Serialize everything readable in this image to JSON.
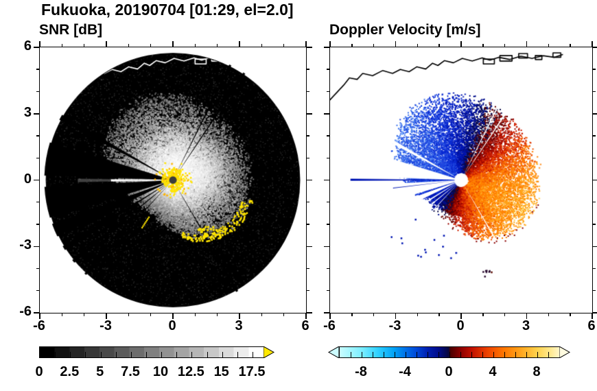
{
  "title": "Fukuoka, 20190704 [01:29, el=2.0]",
  "panels": {
    "snr": {
      "title": "SNR [dB]"
    },
    "vel": {
      "title": "Doppler Velocity [m/s]"
    }
  },
  "axis": {
    "x": [
      "-6",
      "-3",
      "0",
      "3",
      "6"
    ],
    "y": [
      "6",
      "3",
      "0",
      "-3",
      "-6"
    ]
  },
  "colorbars": {
    "snr": {
      "labels": [
        "0",
        "2.5",
        "5",
        "7.5",
        "10",
        "12.5",
        "15",
        "17.5"
      ],
      "segments": 15,
      "range": [
        0,
        18.4
      ],
      "arrow_color": "#ffe800"
    },
    "vel": {
      "labels": [
        "-8",
        "-4",
        "0",
        "4",
        "8"
      ],
      "range": [
        -10,
        10
      ],
      "arrow_left_color": "#ccfbff",
      "arrow_right_color": "#fffbe0",
      "stops": [
        [
          -10,
          "#c8fdff"
        ],
        [
          -8,
          "#7deeff"
        ],
        [
          -6.5,
          "#2fd0ff"
        ],
        [
          -5,
          "#00a0f5"
        ],
        [
          -4,
          "#0070e8"
        ],
        [
          -3,
          "#0048d8"
        ],
        [
          -2,
          "#0020b0"
        ],
        [
          -1,
          "#000d8b"
        ],
        [
          -0.05,
          "#06063c"
        ],
        [
          0.05,
          "#4a0000"
        ],
        [
          1,
          "#8b0000"
        ],
        [
          2,
          "#c01000"
        ],
        [
          3.5,
          "#ee4400"
        ],
        [
          5,
          "#ff7800"
        ],
        [
          6.5,
          "#ffa51e"
        ],
        [
          8,
          "#ffd24d"
        ],
        [
          9.2,
          "#ffe990"
        ],
        [
          10,
          "#fff6c8"
        ]
      ]
    }
  },
  "chart_data": [
    {
      "type": "heatmap",
      "variant": "radar-ppi",
      "title": "SNR [dB]",
      "x_range": [
        -6,
        6
      ],
      "y_range": [
        -6,
        6
      ],
      "x_ticks": [
        -6,
        -3,
        0,
        3,
        6
      ],
      "y_ticks": [
        -6,
        -3,
        0,
        3,
        6
      ],
      "grid": false,
      "colorbar": {
        "label_values": [
          0,
          2.5,
          5,
          7.5,
          10,
          12.5,
          15,
          17.5
        ],
        "range": [
          0,
          18.4
        ],
        "palette": "grayscale black to white, discrete steps",
        "over_arrow": "yellow"
      },
      "features": {
        "radar_location": [
          0,
          0
        ],
        "scan_radius_units": 5.75,
        "background": "black disk (no/low SNR) with faint noise speckle",
        "echo_boundary_params": {
          "base": 3.0,
          "c1": 0.9,
          "p1": 60,
          "c2": 0.45,
          "p2": 270
        },
        "echo": "bright speckled precipitation echo centered on radar, brightest (white, ~15-18 dB) core, ragged gray edges",
        "blocked_sectors_deg": [
          [
            163,
            178
          ],
          [
            183,
            197
          ],
          [
            200,
            206
          ],
          [
            211,
            213
          ],
          [
            218.5,
            220
          ],
          [
            226.5,
            227.5
          ],
          [
            149.5,
            152
          ]
        ],
        "thin_rays_deg": [
          [
            55.8,
            56.8
          ],
          [
            63,
            64
          ],
          [
            299.5,
            300.5
          ]
        ],
        "bright_ray_deg": [
          179.2,
          181.3
        ],
        "ground_clutter": "saturated yellow cluster at radar site with dark center dot",
        "sea_clutter_arc_deg": [
          280,
          348
        ],
        "coastline_points": [
          [
            -6,
            3.55
          ],
          [
            -5.3,
            4.3
          ],
          [
            -5.05,
            4.62
          ],
          [
            -4.7,
            4.55
          ],
          [
            -4.45,
            4.82
          ],
          [
            -4.0,
            4.72
          ],
          [
            -3.55,
            4.95
          ],
          [
            -3.1,
            4.82
          ],
          [
            -2.75,
            5.0
          ],
          [
            -2.35,
            4.9
          ],
          [
            -2.0,
            5.12
          ],
          [
            -1.6,
            5.02
          ],
          [
            -1.3,
            5.28
          ],
          [
            -1.05,
            5.18
          ],
          [
            -0.75,
            5.4
          ],
          [
            -0.35,
            5.3
          ],
          [
            0.05,
            5.5
          ],
          [
            0.5,
            5.38
          ],
          [
            0.95,
            5.52
          ],
          [
            1.3,
            5.42
          ],
          [
            1.7,
            5.55
          ],
          [
            2.2,
            5.45
          ],
          [
            2.7,
            5.6
          ],
          [
            3.2,
            5.5
          ],
          [
            3.7,
            5.62
          ],
          [
            4.2,
            5.55
          ],
          [
            4.6,
            5.68
          ]
        ],
        "port_shapes": [
          [
            1.0,
            5.25,
            0.5,
            0.22
          ],
          [
            1.75,
            5.38,
            0.55,
            0.25
          ],
          [
            2.6,
            5.52,
            0.4,
            0.2
          ],
          [
            3.35,
            5.45,
            0.3,
            0.18
          ],
          [
            4.15,
            5.55,
            0.35,
            0.2
          ]
        ]
      }
    },
    {
      "type": "heatmap",
      "variant": "radar-ppi",
      "title": "Doppler Velocity [m/s]",
      "x_range": [
        -6,
        6
      ],
      "y_range": [
        -6,
        6
      ],
      "x_ticks": [
        -6,
        -3,
        0,
        3,
        6
      ],
      "y_ticks": [
        -6,
        -3,
        0,
        3,
        6
      ],
      "grid": false,
      "colorbar": {
        "label_values": [
          -8,
          -4,
          0,
          4,
          8
        ],
        "range": [
          -10,
          10
        ],
        "palette": "pale cyan to blue to near-black navy (negative, toward) | dark red to orange to yellow to cream (positive, away)",
        "under_arrow": "pale cyan",
        "over_arrow": "pale yellow"
      },
      "features": {
        "pattern": "velocity dipole on white background: dark blue (toward, ~ -4 to -9 m/s) mass in NW/W sector, red-orange-yellow (away, ~ +2 to +9 m/s) mass in E/SE sector",
        "zero_isodop_axis_deg": 65,
        "max_outbound_azimuth_deg": 335,
        "outbound_max_ms": 9,
        "inbound_max_ms": -9,
        "blocked_sectors": "same west-sector wedges as SNR panel appear as white gaps; thin blue rays extend west",
        "center": "small white hole at radar location"
      }
    }
  ]
}
